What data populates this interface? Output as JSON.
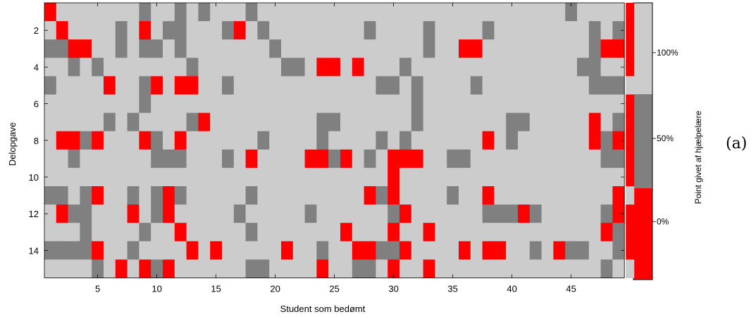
{
  "chart_data": {
    "type": "heatmap",
    "xlabel": "Student som bedømt",
    "ylabel": "Delopgave",
    "x_ticks": [
      "5",
      "10",
      "15",
      "20",
      "25",
      "30",
      "35",
      "40",
      "45"
    ],
    "y_ticks": [
      "2",
      "4",
      "6",
      "8",
      "10",
      "12",
      "14"
    ],
    "n_students": 49,
    "n_subtasks": 15,
    "levels": [
      {
        "value": 0,
        "meaning": "0%",
        "color": "#ff0000"
      },
      {
        "value": 1,
        "meaning": "50%",
        "color": "#808080"
      },
      {
        "value": 2,
        "meaning": "100%",
        "color": "#cccccc"
      }
    ],
    "grid_rows": [
      "R222222212212122212222222222222222222222222212222R",
      "2R222212R2112221R21222222221222212222122222222121R",
      "11RR2212112122222221222222222222122RR2222222221RRR",
      "22121222222212222222112RR2R2221222222222222221122R",
      "12222R221R2RR2212222222222221121222212222222221112",
      "2222222212222222222222222222222122222222222222222R",
      "2222212122221R22222222211222222122222221122222R21R",
      "2RR1R222R12R2222221222212222121222222R21222222R1RR",
      "22122222211122212R2222RR1R212RRR22112222222222211R",
      "22222222222222222222222222222R2222222222222222222R",
      "1121R22121R1222221222222222R1R2222122R2222222222R2",
      "2R11222R21R2222212222212222221R222222111R1222221RR",
      "22212222122R2222212222222R222R22R22222222222222R1R",
      "1111R2212222R2R22222R22122RR11R2222R2RR2212R11221R",
      "222212R2R1R222222112222R22112R22R22222222222222122"
    ],
    "colorbar": {
      "label": "Point givet af hjælpelære",
      "ticks": [
        "100%",
        "50%",
        "0%"
      ],
      "segments": [
        {
          "level": 2,
          "from": 0.67,
          "to": 1.0
        },
        {
          "level": 1,
          "from": 0.33,
          "to": 0.67
        },
        {
          "level": 0,
          "from": 0.0,
          "to": 0.33
        }
      ]
    },
    "panel_label": "(a)"
  }
}
